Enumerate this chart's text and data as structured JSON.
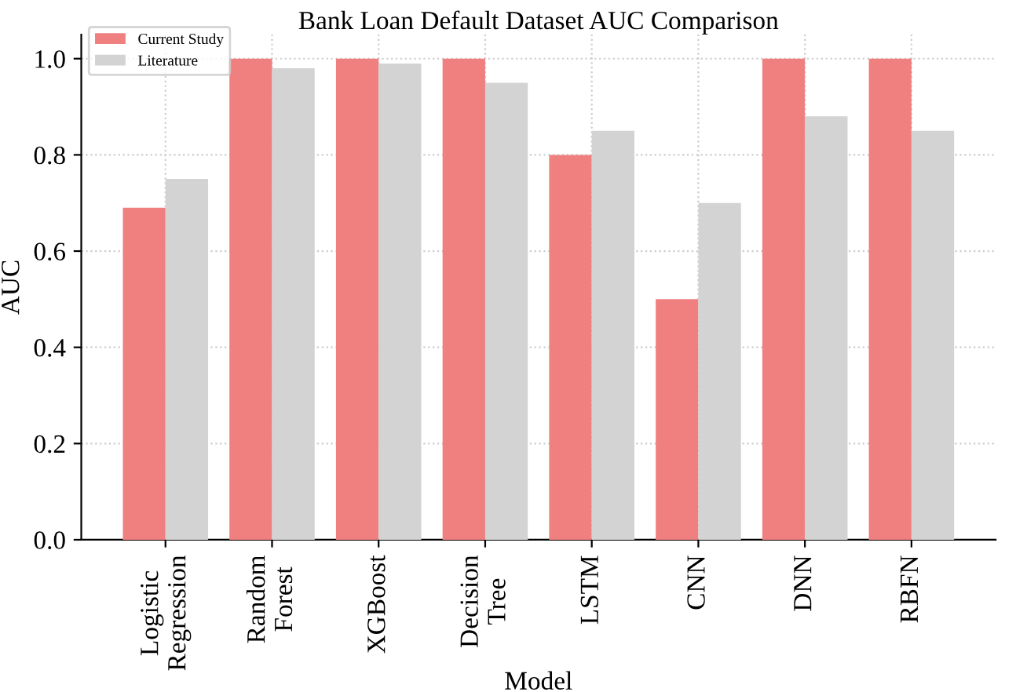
{
  "chart_data": {
    "type": "bar",
    "title": "Bank Loan Default Dataset AUC Comparison",
    "xlabel": "Model",
    "ylabel": "AUC",
    "categories": [
      "Logistic\nRegression",
      "Random\nForest",
      "XGBoost",
      "Decision\nTree",
      "LSTM",
      "CNN",
      "DNN",
      "RBFN"
    ],
    "series": [
      {
        "name": "Current Study",
        "color": "#f08080",
        "values": [
          0.69,
          1.0,
          1.0,
          1.0,
          0.8,
          0.5,
          1.0,
          1.0
        ]
      },
      {
        "name": "Literature",
        "color": "#d3d3d3",
        "values": [
          0.75,
          0.98,
          0.99,
          0.95,
          0.85,
          0.7,
          0.88,
          0.85
        ]
      }
    ],
    "ylim": [
      0,
      1.05
    ],
    "yticks": [
      {
        "value": 0,
        "label": "0.0"
      },
      {
        "value": 0.2,
        "label": "0.2"
      },
      {
        "value": 0.4,
        "label": "0.4"
      },
      {
        "value": 0.6,
        "label": "0.6"
      },
      {
        "value": 0.8,
        "label": "0.8"
      },
      {
        "value": 1.0,
        "label": "1.0"
      }
    ],
    "grid": true,
    "legend": "top left"
  }
}
